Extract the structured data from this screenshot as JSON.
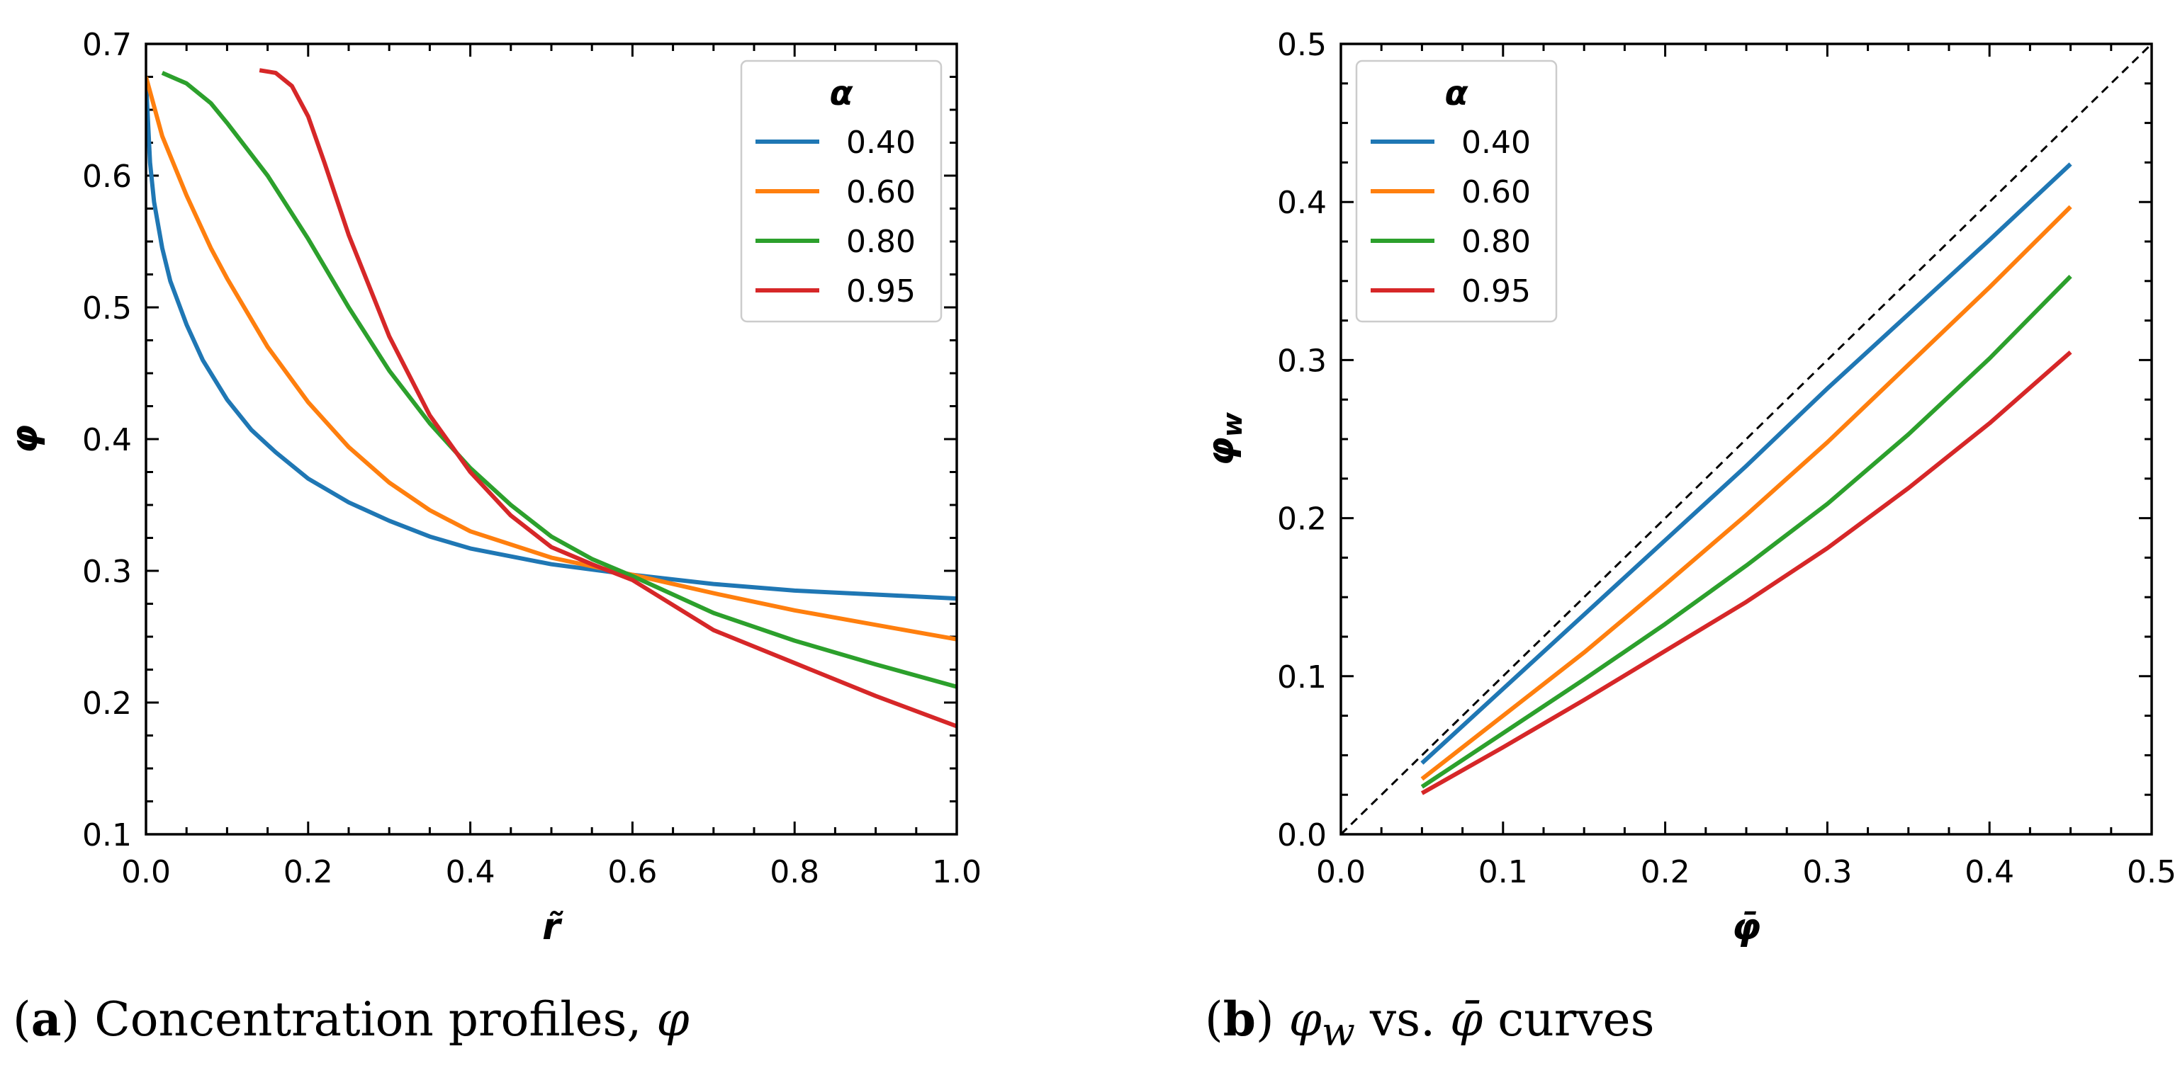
{
  "chart_data": [
    {
      "type": "line",
      "panel_label": "a",
      "caption_text": "Concentration profiles, ",
      "caption_symbol": "φ",
      "xlabel": "r̃",
      "ylabel": "φ",
      "xlim": [
        0.0,
        1.0
      ],
      "ylim": [
        0.1,
        0.7
      ],
      "xticks": [
        "0.0",
        "0.2",
        "0.4",
        "0.6",
        "0.8",
        "1.0"
      ],
      "yticks": [
        "0.1",
        "0.2",
        "0.3",
        "0.4",
        "0.5",
        "0.6",
        "0.7"
      ],
      "xtick_values": [
        0.0,
        0.2,
        0.4,
        0.6,
        0.8,
        1.0
      ],
      "ytick_values": [
        0.1,
        0.2,
        0.3,
        0.4,
        0.5,
        0.6,
        0.7
      ],
      "legend_title": "α",
      "legend_position": "top-right",
      "series": [
        {
          "name": "0.40",
          "color": "#1f77b4",
          "x": [
            0.0,
            0.005,
            0.01,
            0.02,
            0.03,
            0.05,
            0.07,
            0.1,
            0.13,
            0.16,
            0.2,
            0.25,
            0.3,
            0.35,
            0.4,
            0.5,
            0.6,
            0.7,
            0.8,
            0.9,
            1.0
          ],
          "y": [
            0.672,
            0.61,
            0.58,
            0.545,
            0.52,
            0.487,
            0.46,
            0.43,
            0.407,
            0.39,
            0.37,
            0.352,
            0.338,
            0.326,
            0.317,
            0.305,
            0.297,
            0.29,
            0.285,
            0.282,
            0.279
          ]
        },
        {
          "name": "0.60",
          "color": "#ff7f0e",
          "x": [
            0.0,
            0.02,
            0.05,
            0.08,
            0.1,
            0.15,
            0.2,
            0.25,
            0.3,
            0.35,
            0.4,
            0.5,
            0.6,
            0.7,
            0.8,
            0.9,
            1.0
          ],
          "y": [
            0.675,
            0.63,
            0.585,
            0.545,
            0.522,
            0.47,
            0.428,
            0.394,
            0.367,
            0.346,
            0.33,
            0.31,
            0.297,
            0.283,
            0.27,
            0.259,
            0.248
          ]
        },
        {
          "name": "0.80",
          "color": "#2ca02c",
          "x": [
            0.02,
            0.05,
            0.08,
            0.1,
            0.15,
            0.2,
            0.25,
            0.3,
            0.35,
            0.4,
            0.45,
            0.5,
            0.55,
            0.6,
            0.7,
            0.8,
            0.9,
            1.0
          ],
          "y": [
            0.678,
            0.67,
            0.655,
            0.64,
            0.6,
            0.552,
            0.5,
            0.452,
            0.412,
            0.378,
            0.35,
            0.326,
            0.309,
            0.296,
            0.268,
            0.247,
            0.229,
            0.212
          ]
        },
        {
          "name": "0.95",
          "color": "#d62728",
          "x": [
            0.14,
            0.16,
            0.18,
            0.2,
            0.22,
            0.25,
            0.3,
            0.35,
            0.4,
            0.45,
            0.5,
            0.55,
            0.6,
            0.7,
            0.8,
            0.9,
            1.0
          ],
          "y": [
            0.68,
            0.678,
            0.668,
            0.645,
            0.61,
            0.555,
            0.478,
            0.418,
            0.375,
            0.342,
            0.318,
            0.305,
            0.293,
            0.255,
            0.23,
            0.205,
            0.182
          ]
        }
      ]
    },
    {
      "type": "line",
      "panel_label": "b",
      "caption_symbol": "φ",
      "caption_subscript": "w",
      "caption_mid": " vs. ",
      "caption_symbol2": "φ̄",
      "caption_tail": " curves",
      "xlabel": "φ̄",
      "ylabel": "φ",
      "ylabel_subscript": "w",
      "xlim": [
        0.0,
        0.5
      ],
      "ylim": [
        0.0,
        0.5
      ],
      "xticks": [
        "0.0",
        "0.1",
        "0.2",
        "0.3",
        "0.4",
        "0.5"
      ],
      "yticks": [
        "0.0",
        "0.1",
        "0.2",
        "0.3",
        "0.4",
        "0.5"
      ],
      "xtick_values": [
        0.0,
        0.1,
        0.2,
        0.3,
        0.4,
        0.5
      ],
      "ytick_values": [
        0.0,
        0.1,
        0.2,
        0.3,
        0.4,
        0.5
      ],
      "legend_title": "α",
      "legend_position": "top-left",
      "reference_line": {
        "x": [
          0.0,
          0.5
        ],
        "y": [
          0.0,
          0.5
        ],
        "color": "#000000",
        "style": "dashed"
      },
      "series": [
        {
          "name": "0.40",
          "color": "#1f77b4",
          "x": [
            0.05,
            0.1,
            0.15,
            0.2,
            0.25,
            0.3,
            0.35,
            0.4,
            0.45
          ],
          "y": [
            0.045,
            0.092,
            0.139,
            0.186,
            0.233,
            0.282,
            0.329,
            0.376,
            0.424
          ]
        },
        {
          "name": "0.60",
          "color": "#ff7f0e",
          "x": [
            0.05,
            0.1,
            0.15,
            0.2,
            0.25,
            0.3,
            0.35,
            0.4,
            0.45
          ],
          "y": [
            0.035,
            0.075,
            0.115,
            0.158,
            0.202,
            0.248,
            0.297,
            0.346,
            0.397
          ]
        },
        {
          "name": "0.80",
          "color": "#2ca02c",
          "x": [
            0.05,
            0.1,
            0.15,
            0.2,
            0.25,
            0.3,
            0.35,
            0.4,
            0.45
          ],
          "y": [
            0.03,
            0.064,
            0.098,
            0.133,
            0.17,
            0.209,
            0.253,
            0.301,
            0.353
          ]
        },
        {
          "name": "0.95",
          "color": "#d62728",
          "x": [
            0.05,
            0.1,
            0.15,
            0.2,
            0.25,
            0.3,
            0.35,
            0.4,
            0.45
          ],
          "y": [
            0.026,
            0.055,
            0.085,
            0.116,
            0.147,
            0.181,
            0.219,
            0.26,
            0.305
          ]
        }
      ]
    }
  ]
}
